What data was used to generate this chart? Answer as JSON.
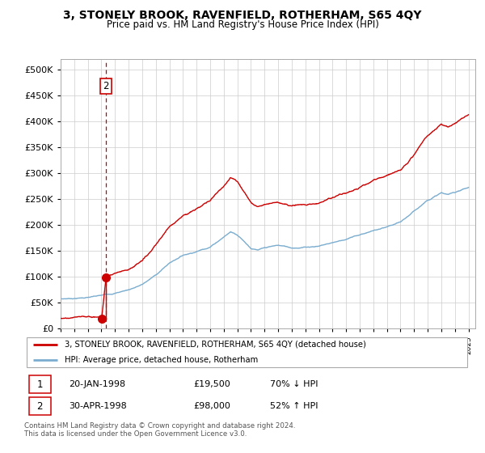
{
  "title": "3, STONELY BROOK, RAVENFIELD, ROTHERHAM, S65 4QY",
  "subtitle": "Price paid vs. HM Land Registry's House Price Index (HPI)",
  "legend_label_red": "3, STONELY BROOK, RAVENFIELD, ROTHERHAM, S65 4QY (detached house)",
  "legend_label_blue": "HPI: Average price, detached house, Rotherham",
  "footer": "Contains HM Land Registry data © Crown copyright and database right 2024.\nThis data is licensed under the Open Government Licence v3.0.",
  "transaction1_label": "1",
  "transaction1_date": "20-JAN-1998",
  "transaction1_price": "£19,500",
  "transaction1_hpi": "70% ↓ HPI",
  "transaction2_label": "2",
  "transaction2_date": "30-APR-1998",
  "transaction2_price": "£98,000",
  "transaction2_hpi": "52% ↑ HPI",
  "red_color": "#cc0000",
  "blue_color": "#7aadcf",
  "background_color": "#ffffff",
  "grid_color": "#cccccc",
  "ylim": [
    0,
    520000
  ],
  "yticks": [
    0,
    50000,
    100000,
    150000,
    200000,
    250000,
    300000,
    350000,
    400000,
    450000,
    500000
  ],
  "transaction1_x": 1998.05,
  "transaction1_y": 19500,
  "transaction2_x": 1998.33,
  "transaction2_y": 98000,
  "xmin": 1995.0,
  "xmax": 2025.5,
  "hpi_points": [
    [
      1995.0,
      57000
    ],
    [
      1996.0,
      58500
    ],
    [
      1997.0,
      60500
    ],
    [
      1998.0,
      63000
    ],
    [
      1999.0,
      68000
    ],
    [
      2000.0,
      75000
    ],
    [
      2001.0,
      85000
    ],
    [
      2002.0,
      103000
    ],
    [
      2003.0,
      126000
    ],
    [
      2004.0,
      142000
    ],
    [
      2005.0,
      150000
    ],
    [
      2006.0,
      160000
    ],
    [
      2007.0,
      180000
    ],
    [
      2007.5,
      190000
    ],
    [
      2008.0,
      185000
    ],
    [
      2008.5,
      173000
    ],
    [
      2009.0,
      160000
    ],
    [
      2009.5,
      156000
    ],
    [
      2010.0,
      159000
    ],
    [
      2011.0,
      163000
    ],
    [
      2012.0,
      158000
    ],
    [
      2013.0,
      160000
    ],
    [
      2014.0,
      163000
    ],
    [
      2015.0,
      170000
    ],
    [
      2016.0,
      177000
    ],
    [
      2017.0,
      185000
    ],
    [
      2018.0,
      193000
    ],
    [
      2019.0,
      198000
    ],
    [
      2020.0,
      205000
    ],
    [
      2021.0,
      225000
    ],
    [
      2022.0,
      248000
    ],
    [
      2022.5,
      255000
    ],
    [
      2023.0,
      262000
    ],
    [
      2023.5,
      258000
    ],
    [
      2024.0,
      262000
    ],
    [
      2024.5,
      268000
    ],
    [
      2025.0,
      272000
    ]
  ]
}
